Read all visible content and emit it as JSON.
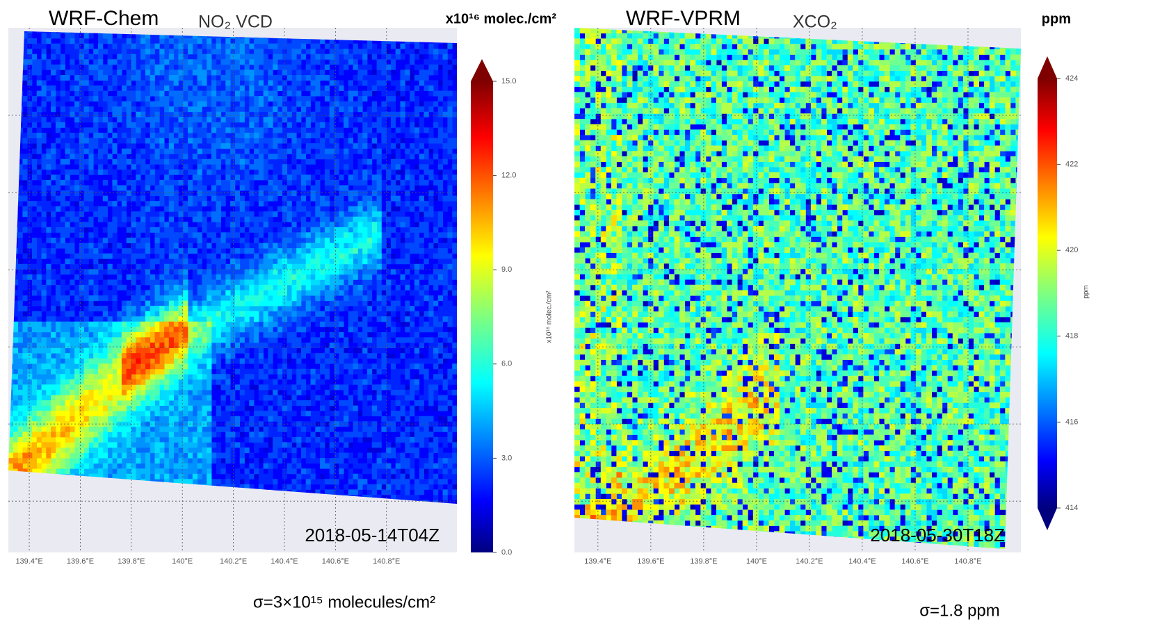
{
  "panels": [
    {
      "model": "WRF-Chem",
      "variable": "NO₂ VCD",
      "unit": "x10¹⁶  molec./cm²",
      "colorbar_label": "x10¹⁶ molec./cm²",
      "timestamp": "2018-05-14T04Z",
      "sigma": "σ=3×10¹⁵ molecules/cm²",
      "xlim": [
        139.318,
        141.076
      ],
      "lon_ticks": [
        {
          "value": 139.4,
          "label": "139.4°E"
        },
        {
          "value": 139.6,
          "label": "139.6°E"
        },
        {
          "value": 139.8,
          "label": "139.8°E"
        },
        {
          "value": 140,
          "label": "140°E"
        },
        {
          "value": 140.2,
          "label": "140.2°E"
        },
        {
          "value": 140.4,
          "label": "140.4°E"
        },
        {
          "value": 140.6,
          "label": "140.6°E"
        },
        {
          "value": 140.8,
          "label": "140.8°E"
        }
      ],
      "colorbar": {
        "lim": [
          0,
          15
        ],
        "ticks": [
          {
            "value": 0,
            "label": "0.0"
          },
          {
            "value": 3,
            "label": "3.0"
          },
          {
            "value": 6,
            "label": "6.0"
          },
          {
            "value": 9,
            "label": "9.0"
          },
          {
            "value": 12,
            "label": "12.0"
          },
          {
            "value": 15,
            "label": "15.0"
          }
        ]
      }
    },
    {
      "model": "WRF-VPRM",
      "variable": "XCO₂",
      "unit": "ppm",
      "colorbar_label": "ppm",
      "timestamp": "2018-05-30T18Z",
      "sigma": "σ=1.8 ppm",
      "xlim": [
        139.311,
        141.0
      ],
      "lon_ticks": [
        {
          "value": 139.4,
          "label": "139.4°E"
        },
        {
          "value": 139.6,
          "label": "139.6°E"
        },
        {
          "value": 139.8,
          "label": "139.8°E"
        },
        {
          "value": 140,
          "label": "140°E"
        },
        {
          "value": 140.2,
          "label": "140.2°E"
        },
        {
          "value": 140.4,
          "label": "140.4°E"
        },
        {
          "value": 140.6,
          "label": "140.6°E"
        },
        {
          "value": 140.8,
          "label": "140.8°E"
        }
      ],
      "colorbar": {
        "lim": [
          414,
          424
        ],
        "ticks": [
          414,
          416,
          418,
          420,
          422,
          424
        ]
      }
    }
  ]
}
